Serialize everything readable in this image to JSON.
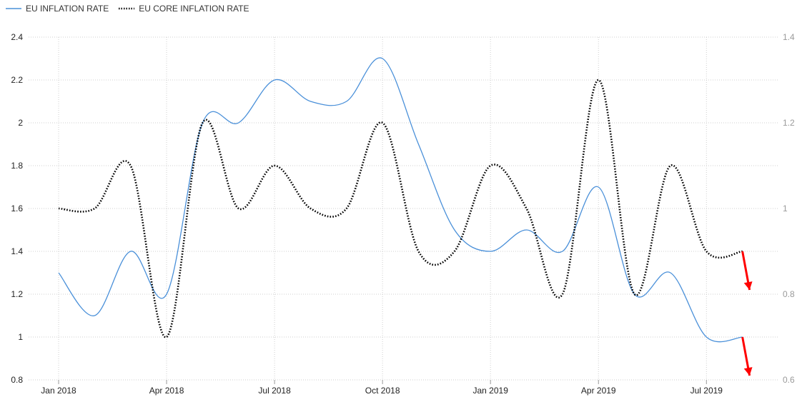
{
  "legend": {
    "series1": "EU INFLATION RATE",
    "series2": "EU CORE INFLATION RATE"
  },
  "colors": {
    "inflation": "#4a90d9",
    "core": "#000000",
    "arrow": "#ff0000",
    "grid": "#cfcfcf"
  },
  "chart_data": {
    "type": "line",
    "x": [
      "2018-01",
      "2018-02",
      "2018-03",
      "2018-04",
      "2018-05",
      "2018-06",
      "2018-07",
      "2018-08",
      "2018-09",
      "2018-10",
      "2018-11",
      "2018-12",
      "2019-01",
      "2019-02",
      "2019-03",
      "2019-04",
      "2019-05",
      "2019-06",
      "2019-07",
      "2019-08"
    ],
    "x_tick_labels": [
      "Jan 2018",
      "Apr 2018",
      "Jul 2018",
      "Oct 2018",
      "Jan 2019",
      "Apr 2019",
      "Jul 2019"
    ],
    "x_tick_indices": [
      0,
      3,
      6,
      9,
      12,
      15,
      18
    ],
    "series": [
      {
        "name": "EU INFLATION RATE",
        "axis": "left",
        "style": "solid",
        "values": [
          1.3,
          1.1,
          1.4,
          1.2,
          2.0,
          2.0,
          2.2,
          2.1,
          2.1,
          2.3,
          1.9,
          1.5,
          1.4,
          1.5,
          1.4,
          1.7,
          1.2,
          1.3,
          1.0,
          1.0
        ]
      },
      {
        "name": "EU CORE INFLATION RATE",
        "axis": "right",
        "style": "dotted",
        "values": [
          1.0,
          1.0,
          1.1,
          0.7,
          1.2,
          1.0,
          1.1,
          1.0,
          1.0,
          1.2,
          0.9,
          0.9,
          1.1,
          1.0,
          0.8,
          1.3,
          0.8,
          1.1,
          0.9,
          0.9
        ]
      }
    ],
    "y_left": {
      "ticks": [
        "0.8",
        "1",
        "1.2",
        "1.4",
        "1.6",
        "1.8",
        "2",
        "2.2",
        "2.4"
      ],
      "ylim": [
        0.8,
        2.4
      ]
    },
    "y_right": {
      "ticks": [
        "0.6",
        "0.8",
        "1",
        "1.2",
        "1.4"
      ],
      "ylim": [
        0.6,
        1.4
      ]
    },
    "grid": true,
    "legend_position": "top-left",
    "annotations": [
      {
        "type": "arrow",
        "color": "#ff0000",
        "direction": "down",
        "from_series": "EU CORE INFLATION RATE",
        "from_x": "2019-08"
      },
      {
        "type": "arrow",
        "color": "#ff0000",
        "direction": "down",
        "from_series": "EU INFLATION RATE",
        "from_x": "2019-08"
      }
    ]
  }
}
